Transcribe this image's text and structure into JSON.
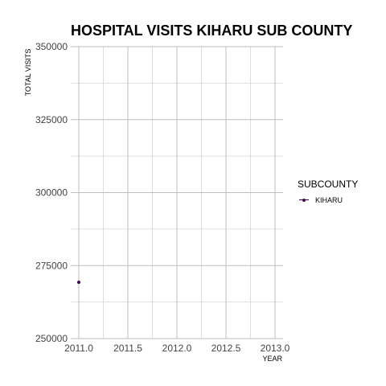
{
  "chart_data": {
    "type": "line",
    "title": "HOSPITAL VISITS KIHARU SUB COUNTY",
    "xlabel": "YEAR",
    "ylabel": "TOTAL VISITS",
    "x_ticks": [
      "2011.0",
      "2011.5",
      "2012.0",
      "2012.5",
      "2013.0"
    ],
    "y_ticks": [
      "250000",
      "275000",
      "300000",
      "325000",
      "350000"
    ],
    "xlim": [
      2011.0,
      2013.0
    ],
    "ylim": [
      250000,
      350000
    ],
    "grid": true,
    "legend_title": "SUBCOUNTY",
    "legend_position": "right",
    "series": [
      {
        "name": "KIHARU",
        "color": "#440154",
        "x": [
          2011
        ],
        "y": [
          269300
        ]
      }
    ]
  }
}
